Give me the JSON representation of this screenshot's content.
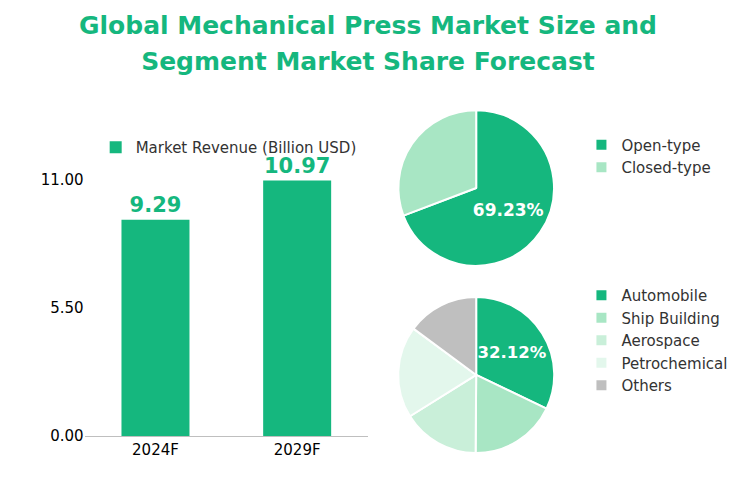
{
  "chart_data": [
    {
      "type": "bar",
      "title": "Global Mechanical Press Market Size and Segment Market Share Forecast",
      "categories": [
        "2024F",
        "2029F"
      ],
      "series": [
        {
          "name": "Market Revenue (Billion USD)",
          "color": "#15b77e",
          "values": [
            9.29,
            10.97
          ]
        }
      ],
      "ylim": [
        0,
        11
      ],
      "yticks": [
        {
          "value": 0,
          "label": "0.00"
        },
        {
          "value": 5.5,
          "label": "5.50"
        },
        {
          "value": 11,
          "label": "11.00"
        }
      ],
      "grid": false,
      "legend": "top left",
      "data_labels": true
    },
    {
      "type": "pie",
      "categories": [
        "Open-type",
        "Closed-type"
      ],
      "values": [
        69.23,
        30.77
      ],
      "value_labels": [
        "69.23%",
        null
      ],
      "colors": [
        "#15b77e",
        "#a8e6c4"
      ],
      "legend": "right",
      "data_labels": true
    },
    {
      "type": "pie",
      "categories": [
        "Automobile",
        "Ship Building",
        "Aerospace",
        "Petrochemical",
        "Others"
      ],
      "values": [
        32.12,
        18,
        16,
        19,
        14.88
      ],
      "value_labels": [
        "32.12%",
        null,
        null,
        null,
        null
      ],
      "colors": [
        "#15b77e",
        "#a8e6c4",
        "#c9efd9",
        "#e3f7ec",
        "#bfbfbf"
      ],
      "legend": "right",
      "data_labels": true
    }
  ]
}
